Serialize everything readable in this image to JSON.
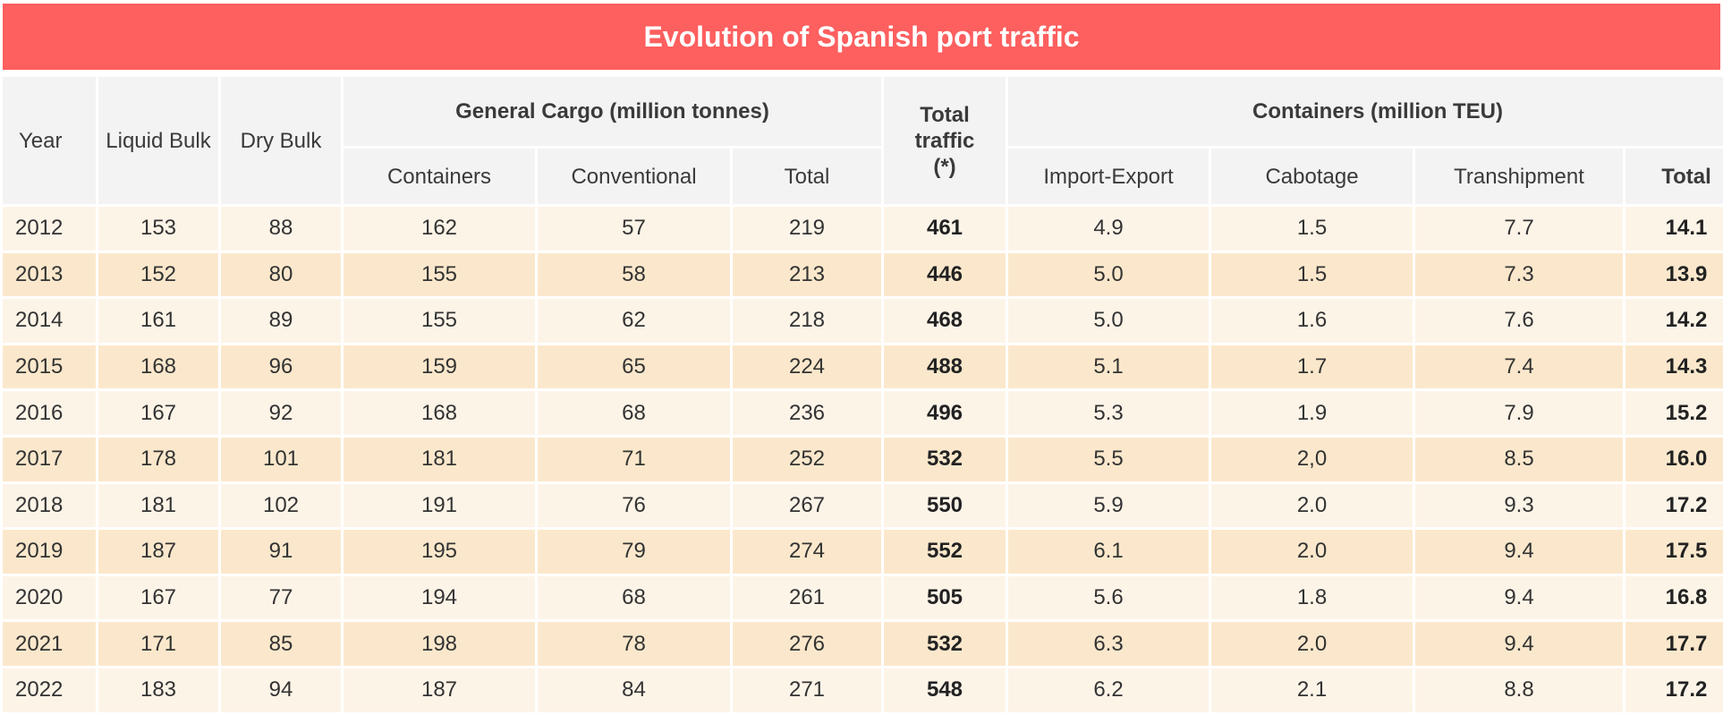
{
  "title": "Evolution of Spanish port traffic",
  "headers": {
    "year": "Year",
    "liquid_bulk": "Liquid Bulk",
    "dry_bulk": "Dry Bulk",
    "general_cargo": "General Cargo (million tonnes)",
    "gc_containers": "Containers",
    "gc_conventional": "Conventional",
    "gc_total": "Total",
    "total_traffic": "Total traffic (*)",
    "containers_teu": "Containers (million TEU)",
    "import_export": "Import-Export",
    "cabotage": "Cabotage",
    "transhipment": "Transhipment",
    "teu_total": "Total"
  },
  "rows": [
    [
      "2012",
      "153",
      "88",
      "162",
      "57",
      "219",
      "461",
      "4.9",
      "1.5",
      "7.7",
      "14.1"
    ],
    [
      "2013",
      "152",
      "80",
      "155",
      "58",
      "213",
      "446",
      "5.0",
      "1.5",
      "7.3",
      "13.9"
    ],
    [
      "2014",
      "161",
      "89",
      "155",
      "62",
      "218",
      "468",
      "5.0",
      "1.6",
      "7.6",
      "14.2"
    ],
    [
      "2015",
      "168",
      "96",
      "159",
      "65",
      "224",
      "488",
      "5.1",
      "1.7",
      "7.4",
      "14.3"
    ],
    [
      "2016",
      "167",
      "92",
      "168",
      "68",
      "236",
      "496",
      "5.3",
      "1.9",
      "7.9",
      "15.2"
    ],
    [
      "2017",
      "178",
      "101",
      "181",
      "71",
      "252",
      "532",
      "5.5",
      "2,0",
      "8.5",
      "16.0"
    ],
    [
      "2018",
      "181",
      "102",
      "191",
      "76",
      "267",
      "550",
      "5.9",
      "2.0",
      "9.3",
      "17.2"
    ],
    [
      "2019",
      "187",
      "91",
      "195",
      "79",
      "274",
      "552",
      "6.1",
      "2.0",
      "9.4",
      "17.5"
    ],
    [
      "2020",
      "167",
      "77",
      "194",
      "68",
      "261",
      "505",
      "5.6",
      "1.8",
      "9.4",
      "16.8"
    ],
    [
      "2021",
      "171",
      "85",
      "198",
      "78",
      "276",
      "532",
      "6.3",
      "2.0",
      "9.4",
      "17.7"
    ],
    [
      "2022",
      "183",
      "94",
      "187",
      "84",
      "271",
      "548",
      "6.2",
      "2.1",
      "8.8",
      "17.2"
    ]
  ],
  "colors": {
    "title_bg": "#fe5f5f",
    "header_bg": "#f3f3f3",
    "row_light": "#fdf4e8",
    "row_dark": "#fbe8cc"
  }
}
